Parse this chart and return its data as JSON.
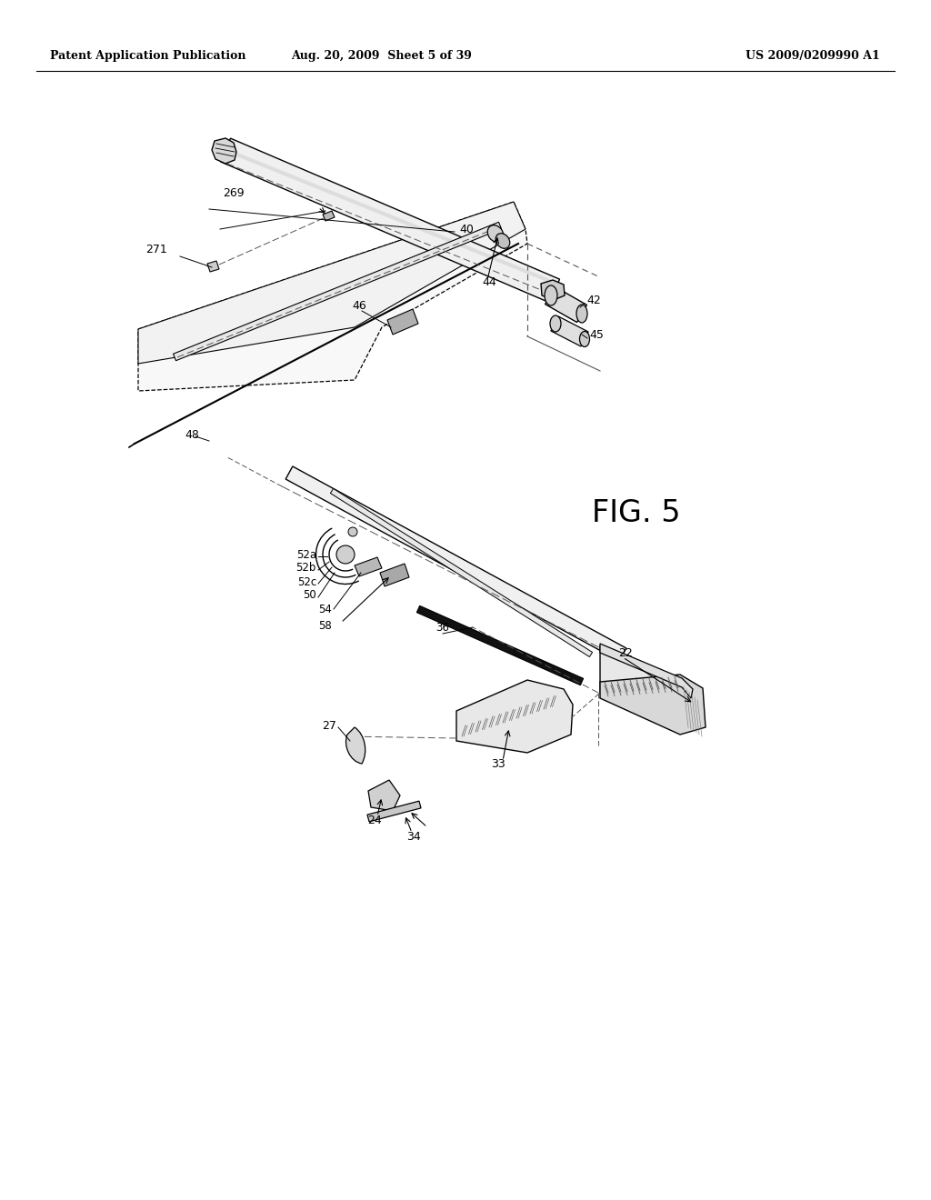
{
  "header_left": "Patent Application Publication",
  "header_center": "Aug. 20, 2009  Sheet 5 of 39",
  "header_right": "US 2009/0209990 A1",
  "fig_label": "FIG. 5",
  "bg_color": "#ffffff",
  "lc": "#000000",
  "gray": "#888888",
  "lgray": "#bbbbbb",
  "dgray": "#555555"
}
